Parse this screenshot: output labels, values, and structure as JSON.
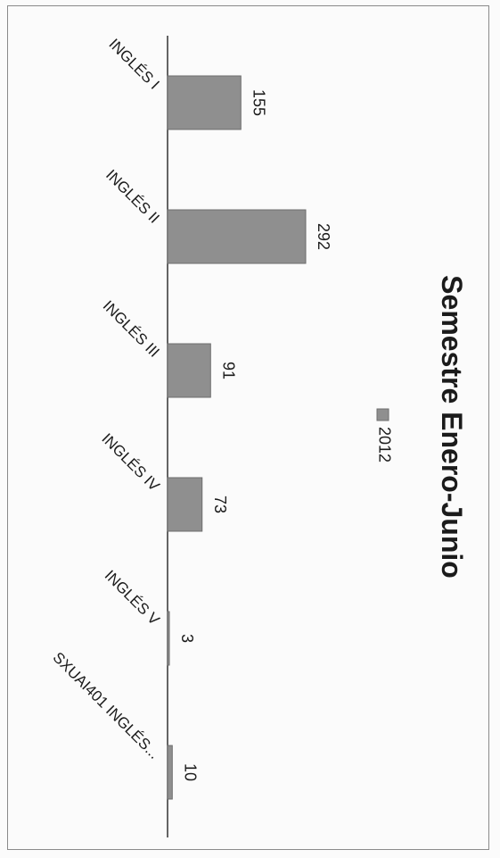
{
  "chart_data": {
    "type": "bar",
    "title": "Semestre Enero-Junio",
    "categories": [
      "INGLÉS I",
      "INGLÉS II",
      "INGLÉS III",
      "INGLÉS IV",
      "INGLÉS V",
      "SXUAI401 INGLÉS..."
    ],
    "series": [
      {
        "name": "2012",
        "values": [
          155,
          292,
          91,
          73,
          3,
          10
        ]
      }
    ],
    "data_labels": [
      "155",
      "292",
      "91",
      "73",
      "3",
      "10"
    ],
    "legend": {
      "position": "top",
      "label": "2012"
    },
    "xlabel": "",
    "ylabel": "",
    "orientation": "rotated 90° clockwise",
    "grid": false,
    "colors": {
      "bar": "#8f8f8f",
      "bar_edge": "#6e6e6e",
      "axis": "#333333",
      "frame": "#8a8a8a"
    }
  }
}
